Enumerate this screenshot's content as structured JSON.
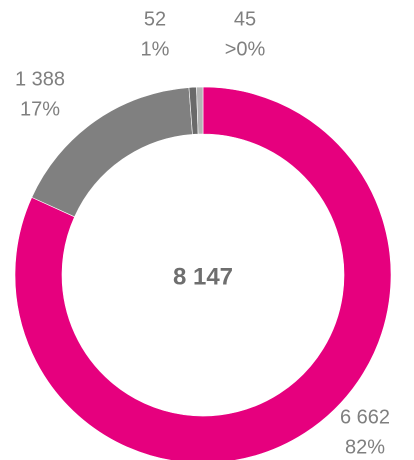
{
  "chart_data": {
    "type": "donut",
    "center_label": "8 147",
    "values": [
      6662,
      1388,
      52,
      45
    ],
    "value_labels": [
      "6 662",
      "1 388",
      "52",
      "45"
    ],
    "percent_labels": [
      "82%",
      "17%",
      "1%",
      ">0%"
    ],
    "colors": [
      "#e6007e",
      "#808080",
      "#6a6a6a",
      "#b4b4b4"
    ]
  }
}
